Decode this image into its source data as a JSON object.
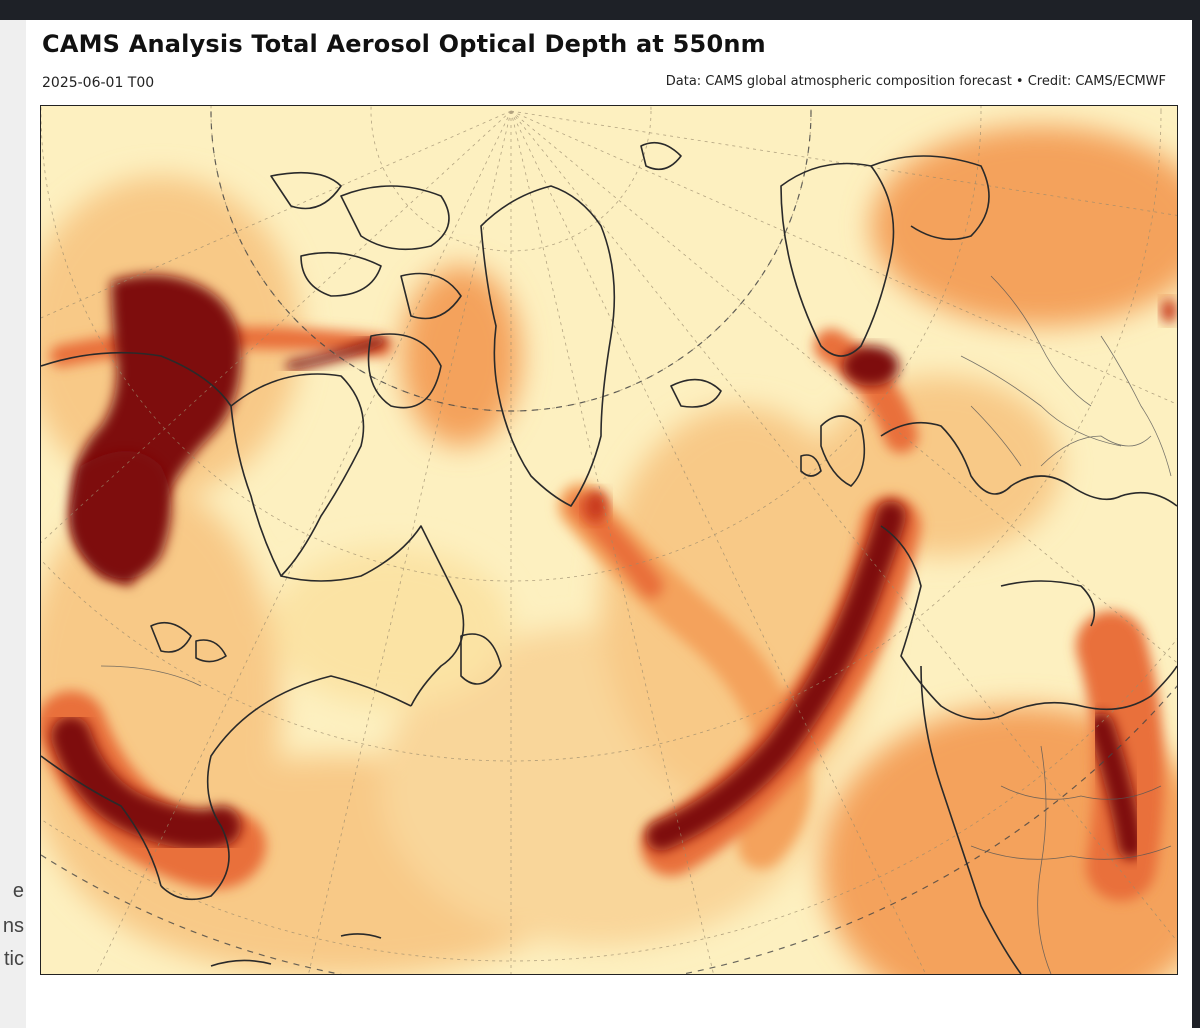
{
  "header": {
    "title": "CAMS Analysis Total Aerosol Optical Depth at 550nm",
    "subtitle": "2025-06-01 T00",
    "credit": "Data: CAMS global atmospheric composition forecast • Credit: CAMS/ECMWF"
  },
  "left_strip": {
    "fragments": [
      "e",
      "ns",
      "tic"
    ]
  },
  "map": {
    "variable": "Total Aerosol Optical Depth at 550nm",
    "projection": "north-polar-stereographic",
    "palette": [
      "#fdf3c8",
      "#fbe3a4",
      "#f8c987",
      "#f4a25c",
      "#e9703a",
      "#c93a1c",
      "#7e0a10"
    ]
  }
}
